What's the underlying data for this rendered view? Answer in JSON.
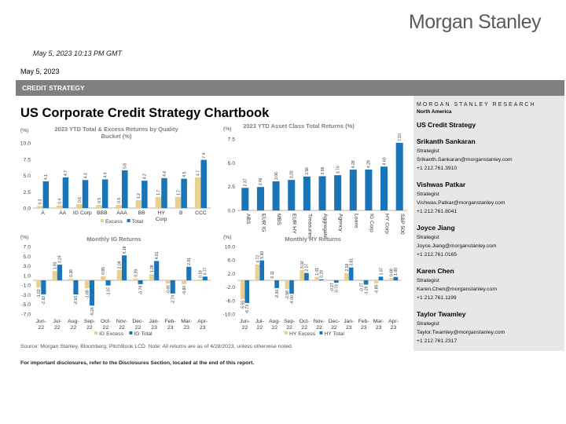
{
  "brand": "Morgan Stanley",
  "timestamp": "May 5, 2023 10:13 PM GMT",
  "report_date": "May 5, 2023",
  "banner": "CREDIT STRATEGY",
  "title": "US Corporate Credit Strategy Chartbook",
  "sidebar": {
    "research": "MORGAN STANLEY RESEARCH",
    "region": "North America",
    "coverage": "US Credit Strategy",
    "analysts": [
      {
        "name": "Srikanth Sankaran",
        "role": "Strategist",
        "email": "Srikanth.Sankaran@morganstanley.com",
        "phone": "+1 212.761.3910"
      },
      {
        "name": "Vishwas Patkar",
        "role": "Strategist",
        "email": "Vishwas.Patkar@morganstanley.com",
        "phone": "+1 212.761.8041"
      },
      {
        "name": "Joyce Jiang",
        "role": "Strategist",
        "email": "Joyce.Jiang@morganstanley.com",
        "phone": "+1 212.761.0165"
      },
      {
        "name": "Karen Chen",
        "role": "Strategist",
        "email": "Karen.Chen@morganstanley.com",
        "phone": "+1 212.761.1199"
      },
      {
        "name": "Taylor Twamley",
        "role": "Strategist",
        "email": "Taylor.Twamley@morganstanley.com",
        "phone": "+1 212.761.2317"
      }
    ]
  },
  "source": "Source: Morgan Stanley, Bloomberg, PitchBook LCD. Note: All returns are as of 4/28/2023, unless otherwise noted.",
  "disclosure": "For important disclosures, refer to the Disclosures Section, located at the end of this report.",
  "colors": {
    "excess": "#e8cf92",
    "total": "#1a75b8"
  },
  "chart_data": [
    {
      "id": "quality",
      "type": "bar",
      "title": "2023 YTD Total & Excess Returns by Quality Bucket  (%)",
      "ylabel": "(%)",
      "ylim": [
        0,
        10
      ],
      "yticks": [
        "0.0",
        "2.5",
        "5.0",
        "7.5",
        "10.0"
      ],
      "categories": [
        "A",
        "AA",
        "IG Corp",
        "BBB",
        "AAA",
        "BB",
        "HY Corp",
        "B",
        "CCC"
      ],
      "series": [
        {
          "name": "Excess",
          "color": "excess",
          "values": [
            0.3,
            0.4,
            0.6,
            0.5,
            0.5,
            1.2,
            1.7,
            1.7,
            4.7
          ],
          "labels": [
            "0.3",
            "0.4",
            "0.6",
            "0.5",
            "0.5",
            "1.2",
            "1.7",
            "1.7",
            "4.7"
          ]
        },
        {
          "name": "Total",
          "color": "total",
          "values": [
            4.1,
            4.7,
            4.3,
            4.4,
            5.8,
            4.2,
            4.6,
            4.5,
            7.4
          ],
          "labels": [
            "4.1",
            "4.7",
            "4.3",
            "4.4",
            "5.8",
            "4.2",
            "4.6",
            "4.5",
            "7.4"
          ]
        }
      ],
      "legend": [
        "Excess",
        "Total"
      ]
    },
    {
      "id": "asset",
      "type": "bar",
      "title": "2023 YTD Asset Class Total Returns (%)",
      "ylabel": "(%)",
      "ylim": [
        0,
        7.5
      ],
      "yticks": [
        "0.0",
        "2.5",
        "5.0",
        "7.5"
      ],
      "categories": [
        "ABS",
        "EUR IG",
        "MBS",
        "EUR HY",
        "Treasuries",
        "Aggregate",
        "Agency",
        "Loans",
        "IG Corp",
        "HY Corp",
        "S&P 500"
      ],
      "series": [
        {
          "name": "Total",
          "color": "total",
          "values": [
            2.37,
            2.46,
            3.06,
            3.2,
            3.56,
            3.59,
            3.7,
            4.28,
            4.29,
            4.6,
            7.1
          ],
          "labels": [
            "2.37",
            "2.46",
            "3.06",
            "3.20",
            "3.56",
            "3.59",
            "3.70",
            "4.28",
            "4.29",
            "4.60",
            "7.10"
          ]
        }
      ]
    },
    {
      "id": "ig",
      "type": "bar",
      "title": "Monthly IG Returns",
      "ylabel": "(%)",
      "ylim": [
        -7,
        7
      ],
      "yticks": [
        "-7.0",
        "-5.0",
        "-3.0",
        "-1.0",
        "1.0",
        "3.0",
        "5.0",
        "7.0"
      ],
      "categories": [
        "Jun-22",
        "Jul-22",
        "Aug-22",
        "Sep-22",
        "Oct-22",
        "Nov-22",
        "Dec-22",
        "Jan-23",
        "Feb-23",
        "Mar-23",
        "Apr-23"
      ],
      "series": [
        {
          "name": "IG Excess",
          "color": "excess",
          "values": [
            -1.53,
            1.93,
            0.36,
            -1.68,
            0.85,
            2.08,
            0.39,
            1.28,
            -0.66,
            -0.8,
            0.18
          ],
          "labels": [
            "-1.53",
            "1.93",
            "0.36",
            "-1.68",
            "0.85",
            "2.08",
            "0.39",
            "1.28",
            "-0.66",
            "-0.80",
            "0.18"
          ]
        },
        {
          "name": "IG Total",
          "color": "total",
          "values": [
            -2.92,
            3.24,
            -2.93,
            -5.24,
            -1.07,
            5.18,
            -0.79,
            4.01,
            -2.74,
            2.81,
            0.77
          ],
          "labels": [
            "-2.92",
            "3.24",
            "-2.93",
            "-5.24",
            "-1.07",
            "5.18",
            "-0.79",
            "4.01",
            "-2.74",
            "2.81",
            "0.77"
          ]
        }
      ],
      "legend": [
        "IG Excess",
        "IG Total"
      ]
    },
    {
      "id": "hy",
      "type": "bar",
      "title": "Monthly HY Returns",
      "ylabel": "(%)",
      "ylim": [
        -10,
        10
      ],
      "yticks": [
        "-10.0",
        "-6.0",
        "-2.0",
        "2.0",
        "6.0",
        "10.0"
      ],
      "categories": [
        "Jun-22",
        "Jul-22",
        "Aug-22",
        "Sep-22",
        "Oct-22",
        "Nov-22",
        "Dec-22",
        "Jan-23",
        "Feb-23",
        "Mar-23",
        "Apr-23"
      ],
      "series": [
        {
          "name": "HY Excess",
          "color": "excess",
          "values": [
            -5.55,
            4.72,
            0.11,
            -2.58,
            3.02,
            1.01,
            -0.27,
            2.18,
            -0.27,
            -0.85,
            0.68
          ],
          "labels": [
            "-5.55",
            "4.72",
            "0.11",
            "-2.58",
            "3.02",
            "1.01",
            "-0.27",
            "2.18",
            "-0.27",
            "-0.85",
            "0.68"
          ]
        },
        {
          "name": "HY Total",
          "color": "total",
          "values": [
            -6.73,
            5.9,
            -2.3,
            -4.0,
            2.17,
            0.29,
            -0.73,
            3.81,
            -1.29,
            1.07,
            1.0
          ],
          "labels": [
            "-6.73",
            "5.90",
            "-2.30",
            "-4.00",
            "2.17",
            "0.29",
            "-0.73",
            "3.81",
            "-1.29",
            "1.07",
            "1.00"
          ]
        }
      ],
      "legend": [
        "HY Excess",
        "HY Total"
      ]
    }
  ]
}
